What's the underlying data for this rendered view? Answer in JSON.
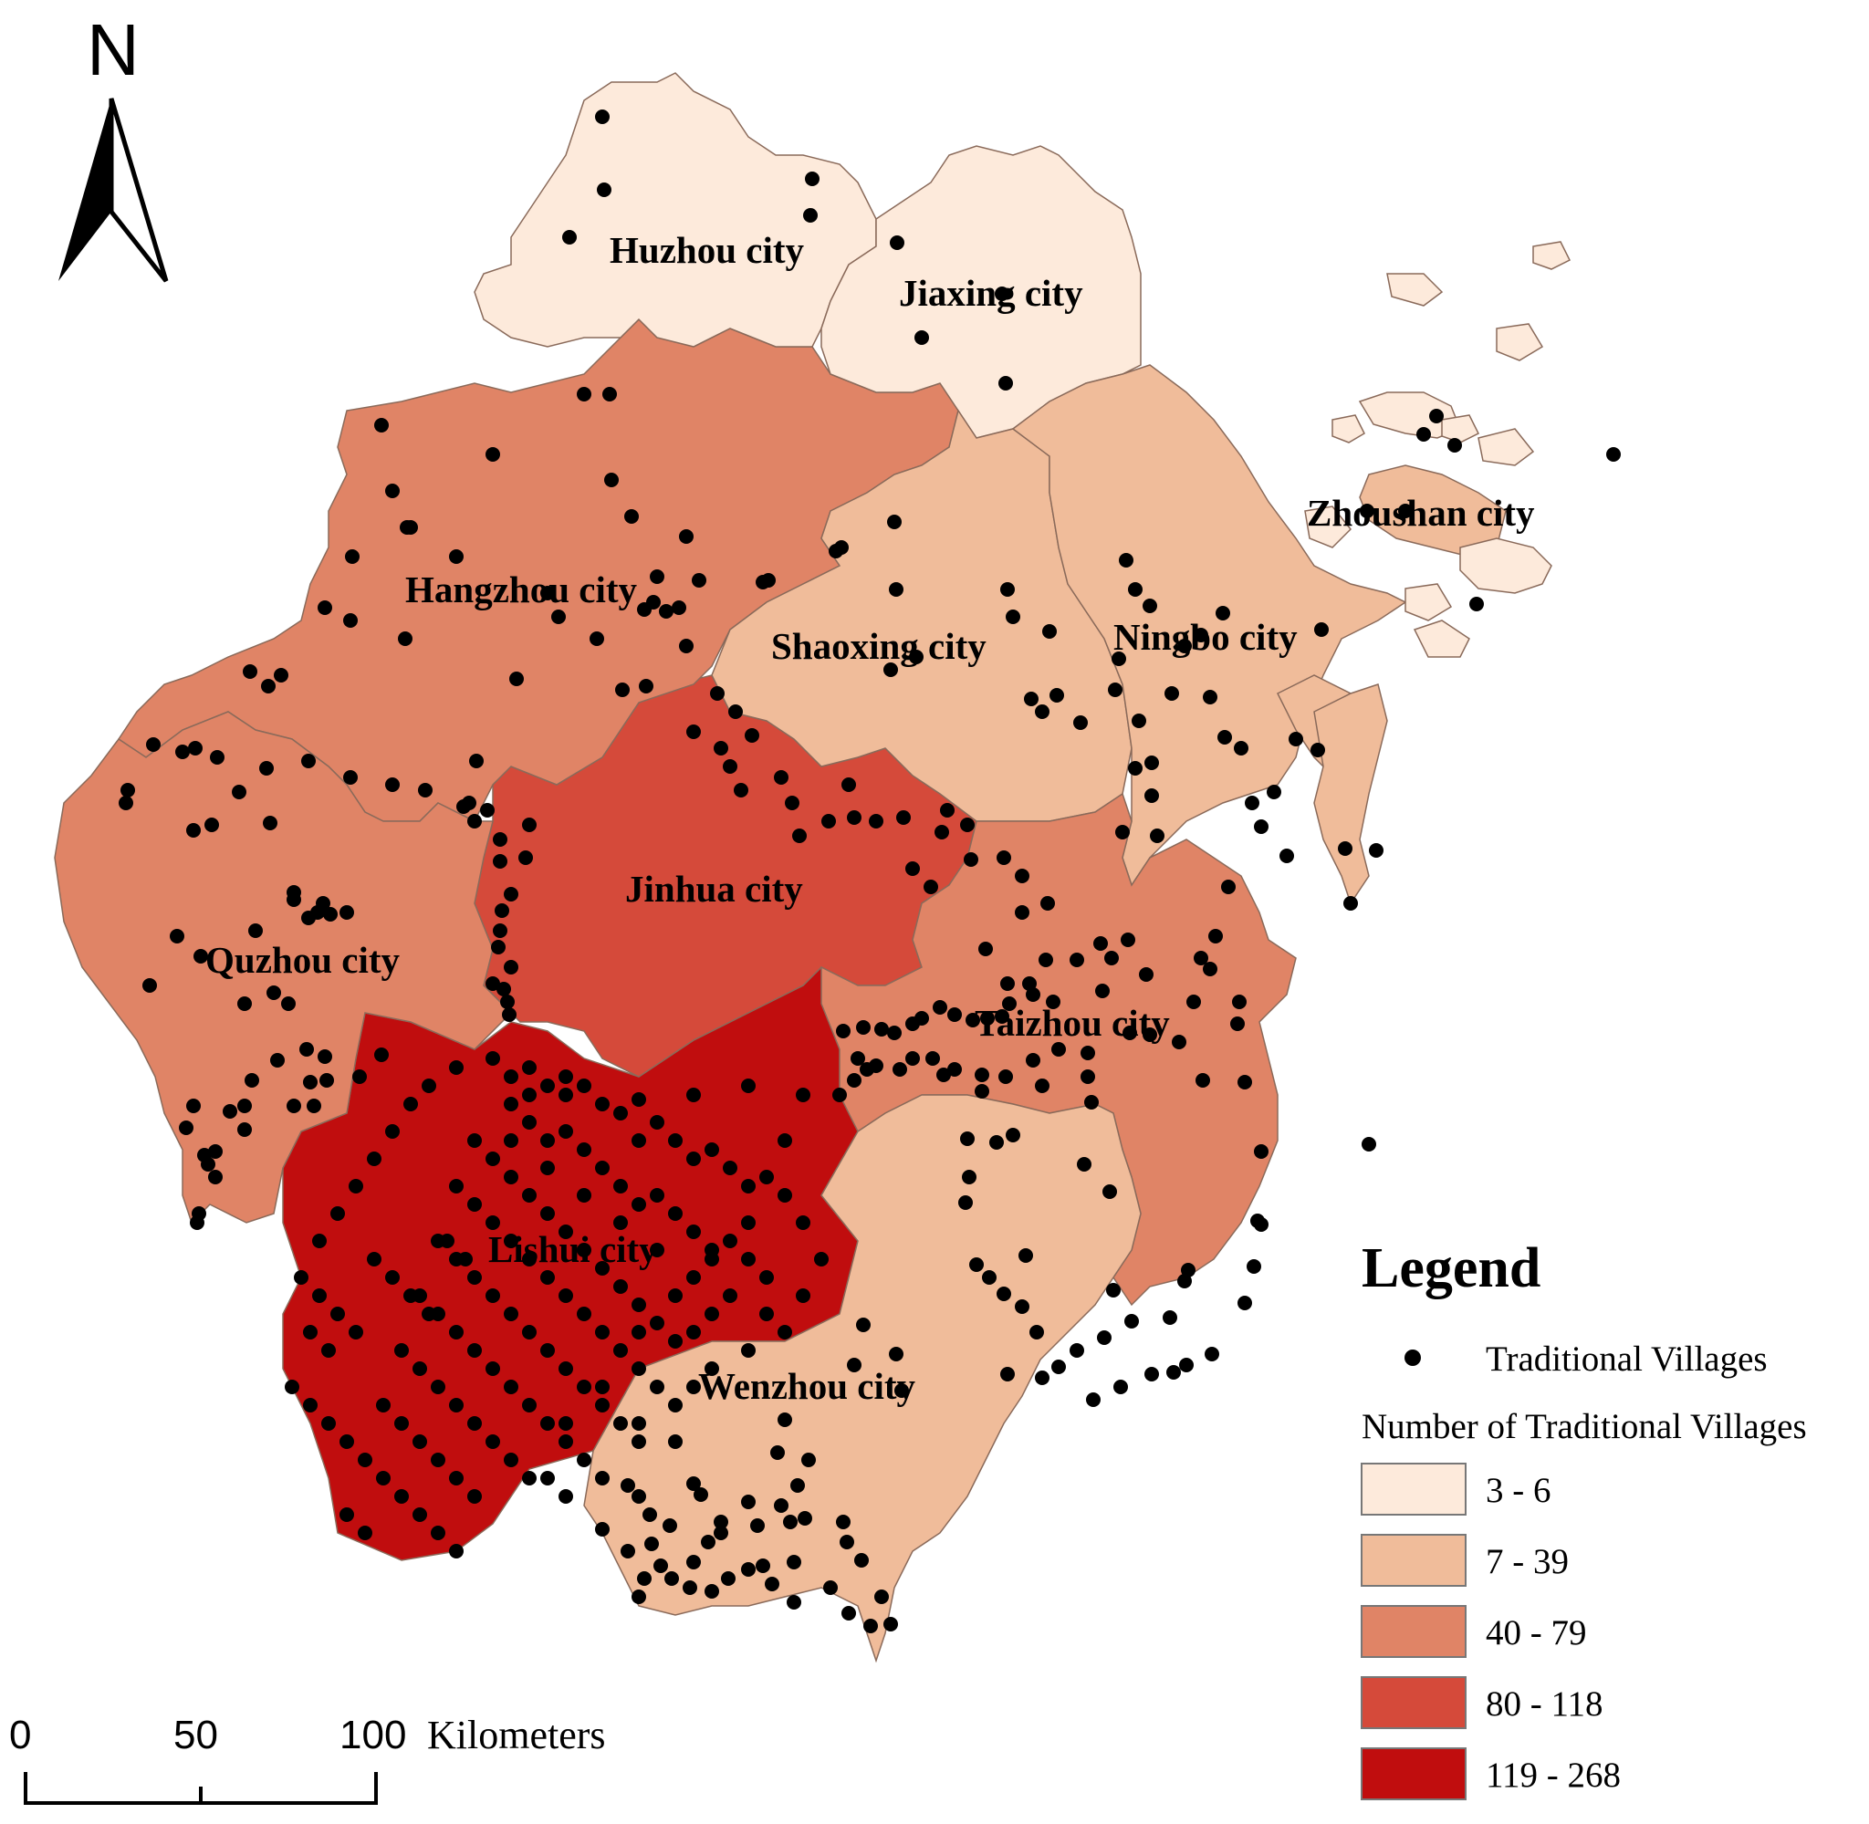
{
  "north_arrow": {
    "letter": "N"
  },
  "cities": [
    {
      "name": "Huzhou city",
      "class": "3 - 6"
    },
    {
      "name": "Jiaxing city",
      "class": "3 - 6"
    },
    {
      "name": "Zhoushan city",
      "class": "7 - 39"
    },
    {
      "name": "Hangzhou city",
      "class": "40 - 79"
    },
    {
      "name": "Shaoxing city",
      "class": "7 - 39"
    },
    {
      "name": "Ningbo city",
      "class": "7 - 39"
    },
    {
      "name": "Jinhua city",
      "class": "80 - 118"
    },
    {
      "name": "Quzhou city",
      "class": "40 - 79"
    },
    {
      "name": "Taizhou city",
      "class": "40 - 79"
    },
    {
      "name": "Lishui city",
      "class": "119 - 268"
    },
    {
      "name": "Wenzhou city",
      "class": "7 - 39"
    }
  ],
  "legend": {
    "title": "Legend",
    "point_label": "Traditional Villages",
    "classes_title": "Number of Traditional Villages",
    "classes": [
      {
        "label": "3 - 6",
        "color": "#fdeadb"
      },
      {
        "label": "7 - 39",
        "color": "#f0bc9a"
      },
      {
        "label": "40 - 79",
        "color": "#e08466"
      },
      {
        "label": "80 - 118",
        "color": "#d54a3a"
      },
      {
        "label": "119 - 268",
        "color": "#c00d0e"
      }
    ]
  },
  "scale_bar": {
    "ticks": [
      "0",
      "50",
      "100"
    ],
    "unit": "Kilometers"
  }
}
